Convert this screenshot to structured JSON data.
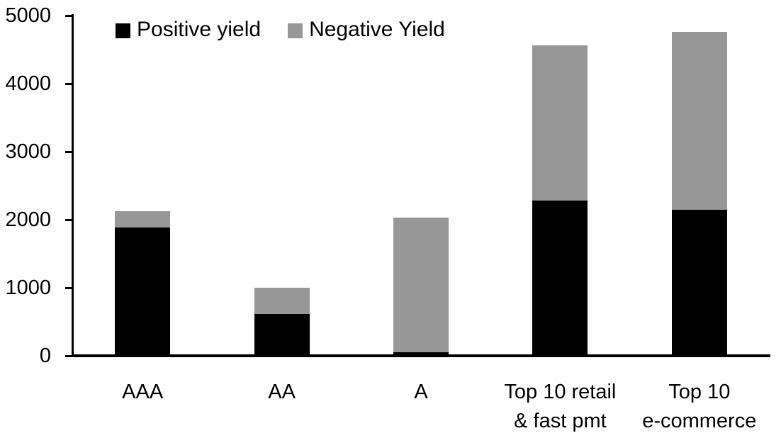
{
  "chart_data": {
    "type": "bar",
    "stacked": true,
    "title": "",
    "xlabel": "",
    "ylabel": "",
    "categories": [
      "AAA",
      "AA",
      "A",
      "Top 10 retail & fast pmt",
      "Top 10 e-commerce"
    ],
    "category_label_lines": [
      [
        "AAA"
      ],
      [
        "AA"
      ],
      [
        "A"
      ],
      [
        "Top 10 retail",
        "& fast pmt"
      ],
      [
        "Top 10",
        "e-commerce"
      ]
    ],
    "series": [
      {
        "name": "Positive yield",
        "color": "#000000",
        "values": [
          1890,
          610,
          50,
          2280,
          2150
        ]
      },
      {
        "name": "Negative Yield",
        "color": "#979797",
        "values": [
          240,
          390,
          1980,
          2280,
          2610
        ]
      }
    ],
    "ylim": [
      0,
      5000
    ],
    "yticks": [
      0,
      1000,
      2000,
      3000,
      4000,
      5000
    ],
    "grid": false,
    "legend_position": "top-left",
    "axis_color": "#000000"
  }
}
